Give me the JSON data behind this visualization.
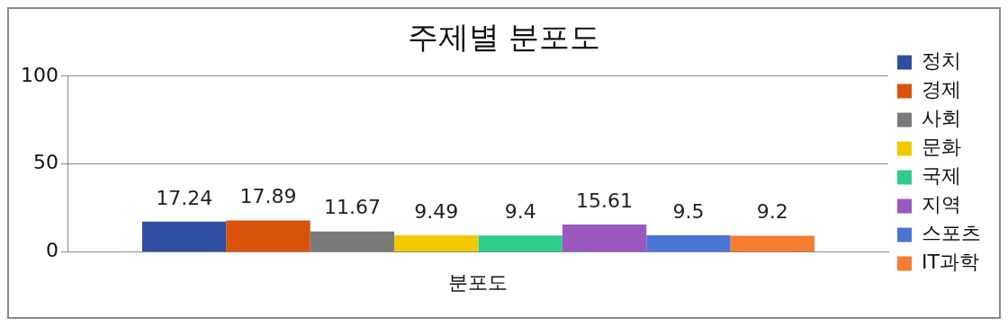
{
  "chart_data": {
    "type": "bar",
    "title": "주제별 분포도",
    "categories": [
      "분포도"
    ],
    "series": [
      {
        "name": "정치",
        "color": "#2e4fa0",
        "values": [
          17.24
        ]
      },
      {
        "name": "경제",
        "color": "#d9540a",
        "values": [
          17.89
        ]
      },
      {
        "name": "사회",
        "color": "#7a7a7a",
        "values": [
          11.67
        ]
      },
      {
        "name": "문화",
        "color": "#f2c800",
        "values": [
          9.49
        ]
      },
      {
        "name": "국제",
        "color": "#2ecc8a",
        "values": [
          9.4
        ]
      },
      {
        "name": "지역",
        "color": "#9b59c0",
        "values": [
          15.61
        ]
      },
      {
        "name": "스포츠",
        "color": "#4a74d6",
        "values": [
          9.5
        ]
      },
      {
        "name": "IT과학",
        "color": "#f57c30",
        "values": [
          9.2
        ]
      }
    ],
    "ylim": [
      0,
      100
    ],
    "yticks": [
      0,
      50,
      100
    ],
    "grid": "y",
    "legend": "right",
    "data_labels": true
  }
}
